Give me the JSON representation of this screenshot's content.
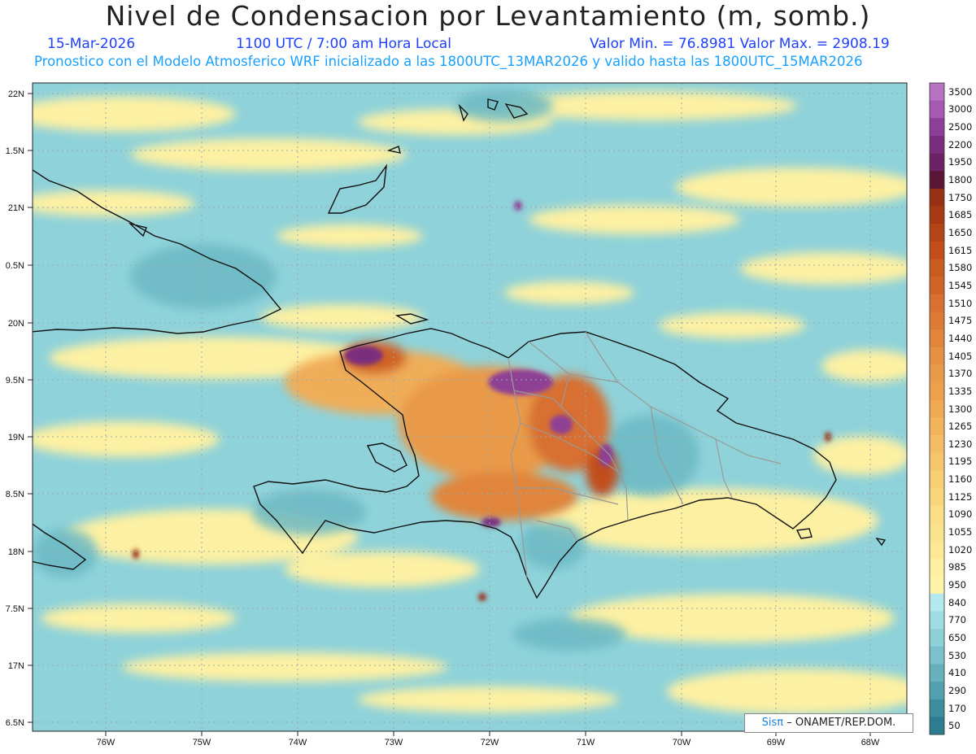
{
  "header": {
    "title": "Nivel de Condensacion por Levantamiento (m, somb.)",
    "date": "15-Mar-2026",
    "time": "1100 UTC / 7:00 am Hora Local",
    "range": "Valor Min. = 76.8981  Valor Max. = 2908.19",
    "description": "Pronostico con el Modelo Atmosferico WRF inicializado a las 1800UTC_13MAR2026 y valido hasta las  1800UTC_15MAR2026"
  },
  "map": {
    "lat_labels": [
      "22N",
      "1.5N",
      "21N",
      "0.5N",
      "20N",
      "9.5N",
      "19N",
      "8.5N",
      "18N",
      "7.5N",
      "17N",
      "6.5N"
    ],
    "lon_labels": [
      "76W",
      "75W",
      "74W",
      "73W",
      "72W",
      "71W",
      "70W",
      "69W",
      "68W"
    ],
    "credit_logo": "Sisπ",
    "credit_text": "– ONAMET/REP.DOM."
  },
  "colorbar": {
    "levels": [
      "3500",
      "3000",
      "2500",
      "2200",
      "1950",
      "1800",
      "1750",
      "1685",
      "1650",
      "1615",
      "1580",
      "1545",
      "1510",
      "1475",
      "1440",
      "1405",
      "1370",
      "1335",
      "1300",
      "1265",
      "1230",
      "1195",
      "1160",
      "1125",
      "1090",
      "1055",
      "1020",
      "985",
      "950",
      "840",
      "770",
      "650",
      "530",
      "410",
      "290",
      "170",
      "50"
    ],
    "colors": [
      "#b871c1",
      "#a45ab0",
      "#8e3f95",
      "#7a2f7e",
      "#6a2365",
      "#5a1536",
      "#962f14",
      "#a73914",
      "#b44316",
      "#c14e1b",
      "#c95a20",
      "#d06427",
      "#d77030",
      "#dc7a36",
      "#e0853b",
      "#e59042",
      "#e99a49",
      "#ed9f4d",
      "#efa954",
      "#f1b35c",
      "#f4bd64",
      "#f6c66c",
      "#f8cf74",
      "#f9d67c",
      "#fadd85",
      "#fbe38e",
      "#fce896",
      "#fdeea0",
      "#fef3a8",
      "#b3e8ee",
      "#a2dde4",
      "#8ed0d8",
      "#7ac1cb",
      "#66b1bd",
      "#529fae",
      "#3e8d9f",
      "#2e7c90"
    ]
  }
}
